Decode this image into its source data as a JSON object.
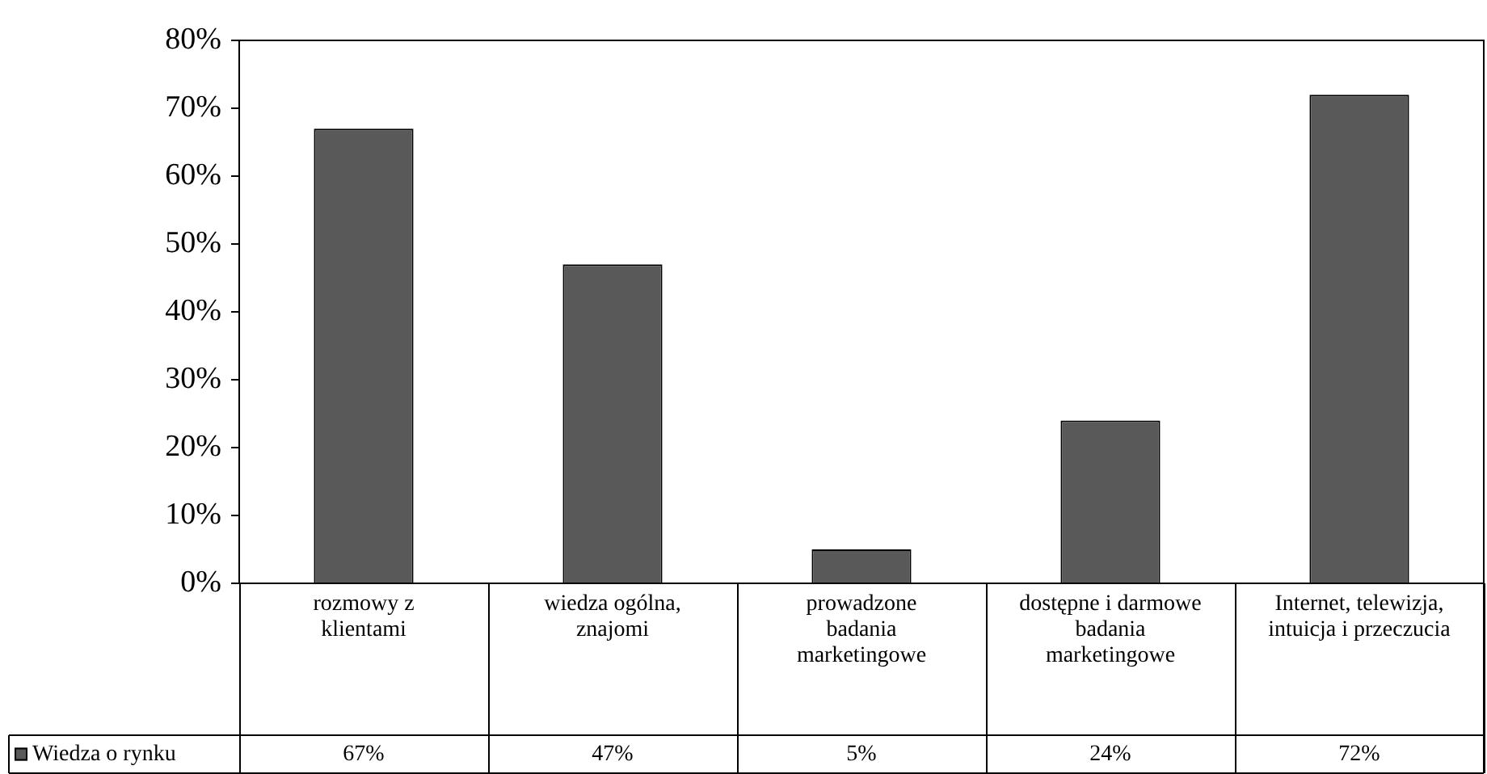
{
  "chart_data": {
    "type": "bar",
    "categories": [
      "rozmowy z klientami",
      "wiedza ogólna, znajomi",
      "prowadzone badania marketingowe",
      "dostępne i darmowe badania marketingowe",
      "Internet, telewizja, intuicja i przeczucia"
    ],
    "series": [
      {
        "name": "Wiedza o rynku",
        "color": "#595959",
        "values": [
          67,
          47,
          5,
          24,
          72
        ],
        "value_labels": [
          "67%",
          "47%",
          "5%",
          "24%",
          "72%"
        ]
      }
    ],
    "ylim": [
      0,
      80
    ],
    "yticks": [
      {
        "value": 0,
        "label": "0%"
      },
      {
        "value": 10,
        "label": "10%"
      },
      {
        "value": 20,
        "label": "20%"
      },
      {
        "value": 30,
        "label": "30%"
      },
      {
        "value": 40,
        "label": "40%"
      },
      {
        "value": 50,
        "label": "50%"
      },
      {
        "value": 60,
        "label": "60%"
      },
      {
        "value": 70,
        "label": "70%"
      },
      {
        "value": 80,
        "label": "80%"
      }
    ],
    "grid": false,
    "legend": "bottom left"
  }
}
